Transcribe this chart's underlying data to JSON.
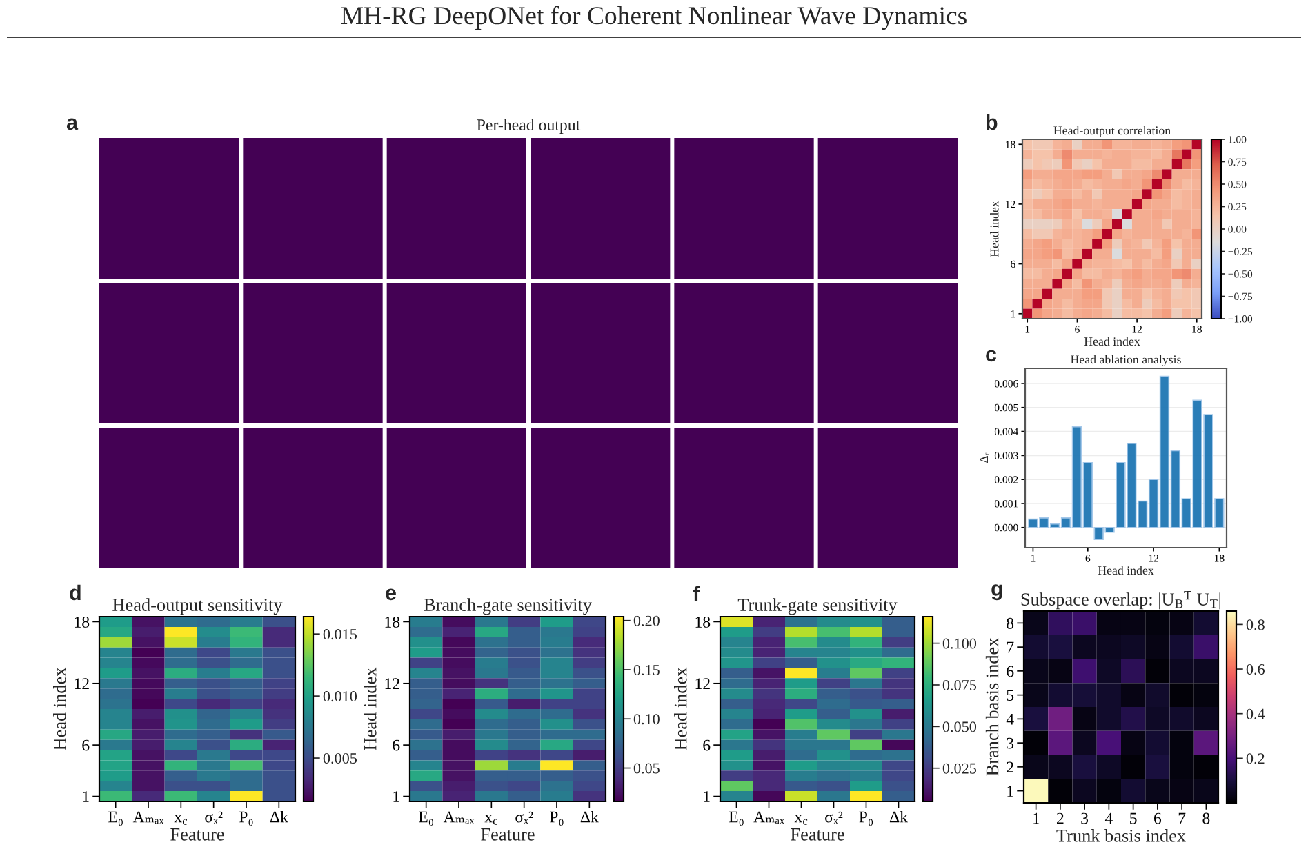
{
  "chart_data": [
    {
      "type": "other",
      "title": "MH-RG DeepONet for Coherent Nonlinear Wave Dynamics"
    },
    {
      "type": "other",
      "title": "Per-head output",
      "annotations": [
        "a"
      ]
    },
    {
      "type": "heatmap",
      "title": "Head-output correlation",
      "xlabel": "Head index",
      "ylabel": "Head index",
      "annotations": [
        "b"
      ],
      "categories": [
        "1",
        null,
        null,
        null,
        null,
        "6",
        null,
        null,
        null,
        null,
        null,
        "12",
        null,
        null,
        null,
        null,
        null,
        "18"
      ],
      "y_categories": [
        "18",
        null,
        null,
        null,
        null,
        null,
        "12",
        null,
        null,
        null,
        null,
        null,
        "6",
        null,
        null,
        null,
        null,
        "1"
      ],
      "cells": [
        [
          0.15,
          0.1,
          0.1,
          0.25,
          0.3,
          0,
          0.3,
          0.3,
          0.45,
          0.25,
          0.25,
          0.3,
          0.3,
          0.25,
          0.3,
          0.4,
          0.45,
          1
        ],
        [
          0.25,
          0.15,
          0.15,
          0.3,
          0.5,
          0.3,
          0.3,
          0.3,
          0.25,
          0.3,
          0.3,
          0.25,
          0.25,
          0.2,
          0.3,
          0.6,
          1,
          0.45
        ],
        [
          0.05,
          0.15,
          0.1,
          0.05,
          0.45,
          0.1,
          0,
          0.15,
          0.3,
          0.3,
          0.3,
          0.2,
          0.2,
          0.3,
          0.3,
          1,
          0.6,
          0.4
        ],
        [
          0.4,
          0.3,
          0.3,
          0.35,
          0.35,
          0.35,
          0.4,
          0.4,
          0.3,
          0.1,
          0.3,
          0.3,
          0.35,
          0.5,
          1,
          0.3,
          0.3,
          0.3
        ],
        [
          0.3,
          0.2,
          0.25,
          0.3,
          0.35,
          0.3,
          0.2,
          0.25,
          0.3,
          0.3,
          0.35,
          0.3,
          0.45,
          1,
          0.5,
          0.3,
          0.2,
          0.25
        ],
        [
          0.15,
          0.05,
          0.15,
          0.3,
          0.3,
          0.2,
          0.3,
          0.1,
          0.3,
          0.3,
          0.3,
          0.35,
          1,
          0.45,
          0.35,
          0.2,
          0.25,
          0.3
        ],
        [
          0.2,
          0.3,
          0.3,
          0.35,
          0.4,
          0.3,
          0.3,
          0.25,
          0.3,
          0.3,
          0.3,
          1,
          0.35,
          0.3,
          0.3,
          0.2,
          0.25,
          0.3
        ],
        [
          0.2,
          0.2,
          0.3,
          0.3,
          0.35,
          0.15,
          0.3,
          0.3,
          0.25,
          -0.15,
          1,
          0.3,
          0.3,
          0.35,
          0.3,
          0.3,
          0.3,
          0.25
        ],
        [
          0,
          0,
          0,
          0.05,
          0.25,
          0.2,
          -0.15,
          0.05,
          0.35,
          1,
          -0.15,
          0.3,
          0.3,
          0.3,
          0.1,
          0.3,
          0.3,
          0.25
        ],
        [
          0.2,
          0.1,
          0.1,
          0.25,
          0.3,
          0.25,
          0.3,
          0.4,
          1,
          0.35,
          0.25,
          0.3,
          0.3,
          0.3,
          0.3,
          0.3,
          0.25,
          0.45
        ],
        [
          0.3,
          0.35,
          0.4,
          0.3,
          0.2,
          0.25,
          0.3,
          1,
          0.4,
          0.05,
          0.3,
          0.25,
          0.1,
          0.25,
          0.4,
          0.15,
          0.3,
          0.3
        ],
        [
          0.35,
          0.35,
          0.4,
          0.45,
          0.2,
          0.3,
          1,
          0.3,
          0.3,
          -0.15,
          0.3,
          0.3,
          0.3,
          0.2,
          0.4,
          0,
          0.3,
          0.3
        ],
        [
          0.3,
          0.3,
          0.3,
          0.2,
          0.35,
          1,
          0.3,
          0.25,
          0.25,
          0.2,
          0.15,
          0.3,
          0.2,
          0.3,
          0.35,
          0.1,
          0.3,
          0
        ],
        [
          0.2,
          0.2,
          0.3,
          0.35,
          1,
          0.35,
          0.2,
          0.2,
          0.3,
          0.25,
          0.35,
          0.4,
          0.3,
          0.35,
          0.35,
          0.45,
          0.5,
          0.3
        ],
        [
          0.3,
          0.3,
          0.3,
          1,
          0.35,
          0.2,
          0.45,
          0.3,
          0.25,
          0.05,
          0.3,
          0.35,
          0.3,
          0.3,
          0.35,
          0.05,
          0.3,
          0.25
        ],
        [
          0.35,
          0.35,
          1,
          0.3,
          0.3,
          0.3,
          0.4,
          0.4,
          0.1,
          0,
          0.3,
          0.3,
          0.15,
          0.25,
          0.3,
          0.1,
          0.15,
          0.1
        ],
        [
          0.45,
          1,
          0.35,
          0.3,
          0.2,
          0.3,
          0.35,
          0.35,
          0.1,
          0,
          0.2,
          0.3,
          0.05,
          0.2,
          0.3,
          0.15,
          0.15,
          0.1
        ],
        [
          1,
          0.45,
          0.35,
          0.3,
          0.2,
          0.3,
          0.35,
          0.3,
          0.2,
          0,
          0.2,
          0.2,
          0.15,
          0.3,
          0.4,
          0.05,
          0.25,
          0.15
        ]
      ],
      "clim": [
        -1,
        1
      ],
      "cticks": [
        {
          "value": -1,
          "label": "−1.00"
        },
        {
          "value": -0.75,
          "label": "−0.75"
        },
        {
          "value": -0.5,
          "label": "−0.50"
        },
        {
          "value": -0.25,
          "label": "−0.25"
        },
        {
          "value": 0,
          "label": "0.00"
        },
        {
          "value": 0.25,
          "label": "0.25"
        },
        {
          "value": 0.5,
          "label": "0.50"
        },
        {
          "value": 0.75,
          "label": "0.75"
        },
        {
          "value": 1,
          "label": "1.00"
        }
      ],
      "colors": [
        "#3b4cc0",
        "#7b9ff9",
        "#aac7fd",
        "#dddcdc",
        "#f5c4ac",
        "#f49a7b",
        "#de604d",
        "#b40426"
      ]
    },
    {
      "type": "bar",
      "title": "Head ablation analysis",
      "xlabel": "Head index",
      "ylabel": "Δᵣ",
      "annotations": [
        "c"
      ],
      "x": [
        1,
        2,
        3,
        4,
        5,
        6,
        7,
        8,
        9,
        10,
        11,
        12,
        13,
        14,
        15,
        16,
        17,
        18
      ],
      "values": [
        0.00035,
        0.0004,
        0.00015,
        0.0004,
        0.0042,
        0.0027,
        -0.0005,
        -0.0002,
        0.0027,
        0.0035,
        0.0011,
        0.002,
        0.0063,
        0.0032,
        0.0012,
        0.0053,
        0.0047,
        0.0012
      ],
      "color": "#1f77b4",
      "xlim": [
        0.28,
        18.67
      ],
      "xticks": [
        1,
        6,
        12,
        18
      ],
      "ylim": [
        -0.00084,
        0.00663
      ],
      "yticks": [
        {
          "value": 0,
          "label": "0.000"
        },
        0.001,
        0.002,
        0.003,
        0.004,
        0.005,
        0.006
      ],
      "grid": "y"
    },
    {
      "type": "heatmap",
      "title": "Head-output sensitivity",
      "xlabel": "Feature",
      "ylabel": "Head index",
      "annotations": [
        "d"
      ],
      "categories": [
        "E₀",
        "Aₘₐₓ",
        "x$_{c}$",
        "σₓ²",
        "P₀",
        "Δk"
      ],
      "y_categories": [
        "18",
        null,
        null,
        null,
        null,
        null,
        "12",
        null,
        null,
        null,
        null,
        null,
        "6",
        null,
        null,
        null,
        null,
        "1"
      ],
      "cells": [
        [
          0.0097,
          0.0022,
          0.0072,
          0.0067,
          0.0078,
          0.0052
        ],
        [
          0.0104,
          0.0027,
          0.0164,
          0.0087,
          0.0116,
          0.0033
        ],
        [
          0.0142,
          0.0022,
          0.0152,
          0.0078,
          0.0112,
          0.0033
        ],
        [
          0.0082,
          0.0015,
          0.0067,
          0.0048,
          0.0075,
          0.0052
        ],
        [
          0.0082,
          0.0019,
          0.0067,
          0.0052,
          0.0067,
          0.0052
        ],
        [
          0.0097,
          0.0022,
          0.0107,
          0.0078,
          0.0104,
          0.0052
        ],
        [
          0.0075,
          0.0019,
          0.006,
          0.0052,
          0.006,
          0.0045
        ],
        [
          0.0067,
          0.0018,
          0.0078,
          0.0052,
          0.006,
          0.0042
        ],
        [
          0.0072,
          0.0015,
          0.0048,
          0.0033,
          0.0045,
          0.0033
        ],
        [
          0.0082,
          0.0027,
          0.009,
          0.0063,
          0.0082,
          0.0037
        ],
        [
          0.0082,
          0.0022,
          0.0092,
          0.0067,
          0.0097,
          0.0042
        ],
        [
          0.0104,
          0.0027,
          0.0067,
          0.006,
          0.0037,
          0.0057
        ],
        [
          0.0075,
          0.0027,
          0.0082,
          0.0052,
          0.0107,
          0.003
        ],
        [
          0.0101,
          0.0022,
          0.0048,
          0.0075,
          0.0048,
          0.0048
        ],
        [
          0.0101,
          0.0022,
          0.0112,
          0.0075,
          0.0119,
          0.0048
        ],
        [
          0.0097,
          0.0022,
          0.006,
          0.0075,
          0.0067,
          0.0052
        ],
        [
          0.0082,
          0.0022,
          0.0052,
          0.0052,
          0.0067,
          0.0052
        ],
        [
          0.0116,
          0.0033,
          0.0116,
          0.0082,
          0.0164,
          0.0052
        ]
      ],
      "clim": [
        0.0015,
        0.0164
      ],
      "cticks": [
        0.005,
        {
          "value": 0.01,
          "label": "0.010"
        },
        0.015
      ],
      "colors": [
        "#440154",
        "#482878",
        "#3e4989",
        "#31688e",
        "#26828e",
        "#1f9e89",
        "#35b779",
        "#6ece58",
        "#b5de2b",
        "#fde725"
      ]
    },
    {
      "type": "heatmap",
      "title": "Branch-gate sensitivity",
      "xlabel": "Feature",
      "ylabel": "Head index",
      "annotations": [
        "e"
      ],
      "categories": [
        "E₀",
        "Aₘₐₓ",
        "x$_{c}$",
        "σₓ²",
        "P₀",
        "Δk"
      ],
      "y_categories": [
        "18",
        null,
        null,
        null,
        null,
        null,
        "12",
        null,
        null,
        null,
        null,
        null,
        "6",
        null,
        null,
        null,
        null,
        "1"
      ],
      "cells": [
        [
          0.095,
          0.022,
          0.091,
          0.05,
          0.119,
          0.057
        ],
        [
          0.082,
          0.035,
          0.129,
          0.072,
          0.091,
          0.054
        ],
        [
          0.11,
          0.02,
          0.087,
          0.072,
          0.095,
          0.039
        ],
        [
          0.119,
          0.022,
          0.076,
          0.063,
          0.087,
          0.044
        ],
        [
          0.054,
          0.022,
          0.095,
          0.063,
          0.101,
          0.05
        ],
        [
          0.101,
          0.025,
          0.091,
          0.069,
          0.101,
          0.063
        ],
        [
          0.072,
          0.022,
          0.044,
          0.072,
          0.087,
          0.072
        ],
        [
          0.072,
          0.035,
          0.133,
          0.082,
          0.114,
          0.054
        ],
        [
          0.076,
          0.016,
          0.069,
          0.031,
          0.054,
          0.054
        ],
        [
          0.057,
          0.022,
          0.106,
          0.082,
          0.082,
          0.044
        ],
        [
          0.082,
          0.016,
          0.082,
          0.072,
          0.11,
          0.063
        ],
        [
          0.069,
          0.031,
          0.091,
          0.072,
          0.082,
          0.082
        ],
        [
          0.087,
          0.022,
          0.106,
          0.076,
          0.129,
          0.057
        ],
        [
          0.072,
          0.022,
          0.054,
          0.044,
          0.057,
          0.031
        ],
        [
          0.101,
          0.025,
          0.176,
          0.095,
          0.204,
          0.072
        ],
        [
          0.129,
          0.025,
          0.072,
          0.072,
          0.072,
          0.063
        ],
        [
          0.063,
          0.031,
          0.063,
          0.057,
          0.087,
          0.057
        ],
        [
          0.091,
          0.035,
          0.091,
          0.072,
          0.095,
          0.044
        ]
      ],
      "clim": [
        0.016,
        0.204
      ],
      "cticks": [
        0.05,
        {
          "value": 0.1,
          "label": "0.10"
        },
        0.15,
        {
          "value": 0.2,
          "label": "0.20"
        }
      ],
      "colors": [
        "#440154",
        "#482878",
        "#3e4989",
        "#31688e",
        "#26828e",
        "#1f9e89",
        "#35b779",
        "#6ece58",
        "#b5de2b",
        "#fde725"
      ]
    },
    {
      "type": "heatmap",
      "title": "Trunk-gate sensitivity",
      "xlabel": "Feature",
      "ylabel": "Head index",
      "annotations": [
        "f"
      ],
      "categories": [
        "E₀",
        "Aₘₐₓ",
        "x$_{c}$",
        "σₓ²",
        "P₀",
        "Δk"
      ],
      "y_categories": [
        "18",
        null,
        null,
        null,
        null,
        null,
        "12",
        null,
        null,
        null,
        null,
        null,
        "6",
        null,
        null,
        null,
        null,
        "1"
      ],
      "cells": [
        [
          0.11,
          0.016,
          0.047,
          0.058,
          0.061,
          0.038
        ],
        [
          0.066,
          0.025,
          0.103,
          0.083,
          0.103,
          0.038
        ],
        [
          0.055,
          0.016,
          0.083,
          0.058,
          0.077,
          0.025
        ],
        [
          0.058,
          0.016,
          0.055,
          0.055,
          0.061,
          0.044
        ],
        [
          0.063,
          0.027,
          0.038,
          0.061,
          0.072,
          0.077
        ],
        [
          0.038,
          0.011,
          0.116,
          0.052,
          0.088,
          0.027
        ],
        [
          0.044,
          0.016,
          0.066,
          0.027,
          0.049,
          0.022
        ],
        [
          0.058,
          0.022,
          0.074,
          0.038,
          0.033,
          0.022
        ],
        [
          0.038,
          0.018,
          0.029,
          0.044,
          0.036,
          0.038
        ],
        [
          0.055,
          0.016,
          0.066,
          0.038,
          0.061,
          0.014
        ],
        [
          0.044,
          0.005,
          0.085,
          0.058,
          0.049,
          0.027
        ],
        [
          0.069,
          0.011,
          0.052,
          0.088,
          0.027,
          0.049
        ],
        [
          0.049,
          0.022,
          0.049,
          0.049,
          0.088,
          0.007
        ],
        [
          0.066,
          0.014,
          0.044,
          0.061,
          0.044,
          0.047
        ],
        [
          0.061,
          0.011,
          0.066,
          0.055,
          0.058,
          0.029
        ],
        [
          0.025,
          0.018,
          0.052,
          0.047,
          0.052,
          0.029
        ],
        [
          0.088,
          0.018,
          0.036,
          0.033,
          0.066,
          0.033
        ],
        [
          0.055,
          0.007,
          0.107,
          0.049,
          0.116,
          0.038
        ]
      ],
      "clim": [
        0.005,
        0.116
      ],
      "cticks": [
        0.025,
        {
          "value": 0.05,
          "label": "0.050"
        },
        0.075,
        {
          "value": 0.1,
          "label": "0.100"
        }
      ],
      "colors": [
        "#440154",
        "#482878",
        "#3e4989",
        "#31688e",
        "#26828e",
        "#1f9e89",
        "#35b779",
        "#6ece58",
        "#b5de2b",
        "#fde725"
      ]
    },
    {
      "type": "heatmap",
      "title": "Subspace overlap: |U$_{B}$$^{T}$ U$_{T}$|",
      "xlabel": "Trunk basis index",
      "ylabel": "Branch basis index",
      "annotations": [
        "g"
      ],
      "categories": [
        "1",
        "2",
        "3",
        "4",
        "5",
        "6",
        "7",
        "8"
      ],
      "y_categories": [
        "8",
        "7",
        "6",
        "5",
        "4",
        "3",
        "2",
        "1"
      ],
      "cells": [
        [
          0.04,
          0.15,
          0.17,
          0.03,
          0.03,
          0.02,
          0.03,
          0.08
        ],
        [
          0.08,
          0.1,
          0.05,
          0.05,
          0.06,
          0.03,
          0.08,
          0.17
        ],
        [
          0.04,
          0.03,
          0.18,
          0.06,
          0.14,
          0.01,
          0.05,
          0.05
        ],
        [
          0.04,
          0.08,
          0.09,
          0.07,
          0.03,
          0.07,
          0.01,
          0.02
        ],
        [
          0.1,
          0.28,
          0.03,
          0.07,
          0.12,
          0.06,
          0.07,
          0.05
        ],
        [
          0.01,
          0.24,
          0.05,
          0.2,
          0.03,
          0.08,
          0.02,
          0.24
        ],
        [
          0.04,
          0.05,
          0.1,
          0.06,
          0.01,
          0.1,
          0.02,
          0.01
        ],
        [
          0.85,
          0.01,
          0.05,
          0.02,
          0.08,
          0.04,
          0.03,
          0.04
        ]
      ],
      "clim": [
        0,
        0.86
      ],
      "cticks": [
        0.2,
        0.4,
        0.6,
        0.8
      ],
      "colors": [
        "#000004",
        "#180f3d",
        "#440f76",
        "#721f81",
        "#9e2f7f",
        "#cd4071",
        "#f1605d",
        "#fd9668",
        "#feca8d",
        "#fcfdbf"
      ]
    }
  ]
}
